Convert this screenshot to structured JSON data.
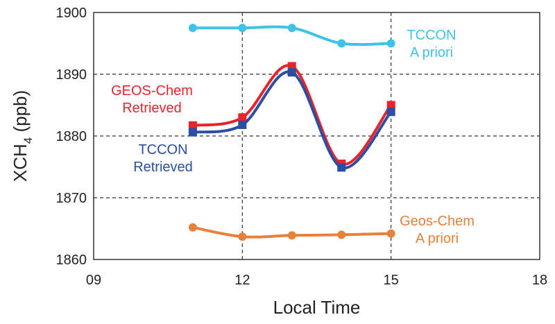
{
  "chart_data": {
    "type": "line",
    "xlabel": "Local Time",
    "ylabel_main": "XCH",
    "ylabel_sub": "4",
    "ylabel_unit": " (ppb)",
    "xlim": [
      9,
      18
    ],
    "ylim": [
      1860,
      1900
    ],
    "xticks": [
      9,
      12,
      15,
      18
    ],
    "xtick_labels": [
      "09",
      "12",
      "15",
      "18"
    ],
    "yticks": [
      1860,
      1870,
      1880,
      1890,
      1900
    ],
    "ytick_labels": [
      "1860",
      "1870",
      "1880",
      "1890",
      "1900"
    ],
    "grid": "dashed at x=12,15 and y=1870,1880,1890",
    "series": [
      {
        "id": "tccon-apriori",
        "name": "TCCON A priori",
        "label_lines": [
          "TCCON",
          "A priori"
        ],
        "color": "#3ec3e8",
        "marker": "circle",
        "x": [
          11,
          12,
          13,
          14,
          15
        ],
        "values": [
          1897.5,
          1897.5,
          1897.5,
          1895.0,
          1895.0
        ]
      },
      {
        "id": "geos-retrieved",
        "name": "GEOS-Chem Retrieved",
        "label_lines": [
          "GEOS-Chem",
          "Retrieved"
        ],
        "color": "#e8232a",
        "marker": "square",
        "x": [
          11,
          12,
          13,
          14,
          15
        ],
        "values": [
          1881.7,
          1883.0,
          1891.3,
          1875.5,
          1885.0
        ]
      },
      {
        "id": "tccon-retrieved",
        "name": "TCCON Retrieved",
        "label_lines": [
          "TCCON",
          "Retrieved"
        ],
        "color": "#2a4ea6",
        "marker": "square",
        "x": [
          11,
          12,
          13,
          14,
          15
        ],
        "values": [
          1880.6,
          1881.8,
          1890.3,
          1874.9,
          1883.9
        ]
      },
      {
        "id": "geos-apriori",
        "name": "Geos-Chem A priori",
        "label_lines": [
          "Geos-Chem",
          "A priori"
        ],
        "color": "#e8803a",
        "marker": "circle",
        "x": [
          11,
          12,
          13,
          14,
          15
        ],
        "values": [
          1865.2,
          1863.7,
          1863.9,
          1864.0,
          1864.2
        ]
      }
    ]
  }
}
